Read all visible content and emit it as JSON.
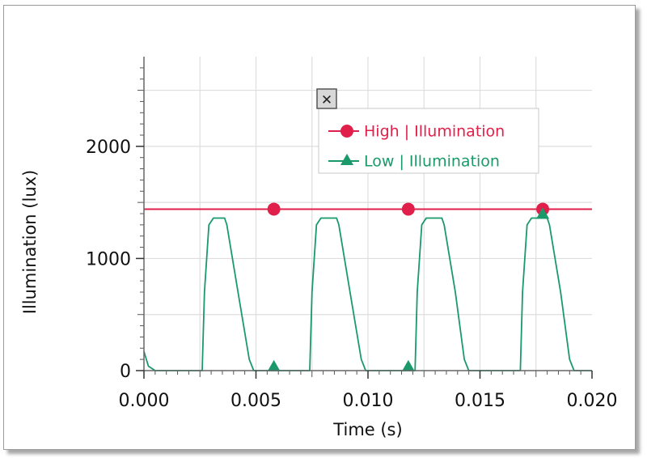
{
  "chart_data": {
    "type": "line",
    "title": "",
    "xlabel": "Time (s)",
    "ylabel": "Illumination (lux)",
    "xlim": [
      0,
      0.02
    ],
    "ylim": [
      0,
      2800
    ],
    "x_ticks": [
      "0.000",
      "0.005",
      "0.010",
      "0.015",
      "0.020"
    ],
    "x_tick_values": [
      0,
      0.005,
      0.01,
      0.015,
      0.02
    ],
    "y_ticks": [
      "0",
      "1000",
      "2000"
    ],
    "y_tick_values": [
      0,
      1000,
      2000
    ],
    "grid": true,
    "legend_position": "top-center",
    "series": [
      {
        "name": "High | Illumination",
        "color": "#e0204a",
        "marker": "circle",
        "x": [
          0,
          0.002,
          0.004,
          0.006,
          0.008,
          0.01,
          0.012,
          0.014,
          0.016,
          0.018,
          0.02
        ],
        "y": [
          1440,
          1440,
          1440,
          1440,
          1440,
          1440,
          1440,
          1440,
          1440,
          1440,
          1440
        ],
        "marker_x": [
          0.0058,
          0.0118,
          0.0178
        ]
      },
      {
        "name": "Low | Illumination",
        "color": "#1a9a6a",
        "marker": "triangle",
        "x": [
          0,
          0.0002,
          0.0005,
          0.0026,
          0.0027,
          0.0029,
          0.0031,
          0.0036,
          0.0037,
          0.0042,
          0.0047,
          0.0049,
          0.0055,
          0.0074,
          0.0075,
          0.0077,
          0.0079,
          0.0086,
          0.0087,
          0.0092,
          0.0097,
          0.0099,
          0.0104,
          0.0121,
          0.0122,
          0.0124,
          0.0126,
          0.0133,
          0.0134,
          0.0139,
          0.0143,
          0.0145,
          0.015,
          0.0168,
          0.0169,
          0.0171,
          0.0173,
          0.018,
          0.0181,
          0.0186,
          0.019,
          0.0192,
          0.02
        ],
        "y": [
          170,
          40,
          0,
          0,
          700,
          1300,
          1360,
          1360,
          1300,
          700,
          100,
          0,
          0,
          0,
          700,
          1300,
          1360,
          1360,
          1300,
          700,
          100,
          0,
          0,
          0,
          700,
          1300,
          1360,
          1360,
          1300,
          700,
          100,
          0,
          0,
          0,
          700,
          1300,
          1360,
          1360,
          1300,
          700,
          100,
          0,
          0
        ],
        "marker_x": [
          0.0058,
          0.0118,
          0.0178
        ],
        "marker_y": [
          30,
          30,
          1390
        ]
      }
    ]
  },
  "legend": {
    "close_glyph": "✕"
  }
}
